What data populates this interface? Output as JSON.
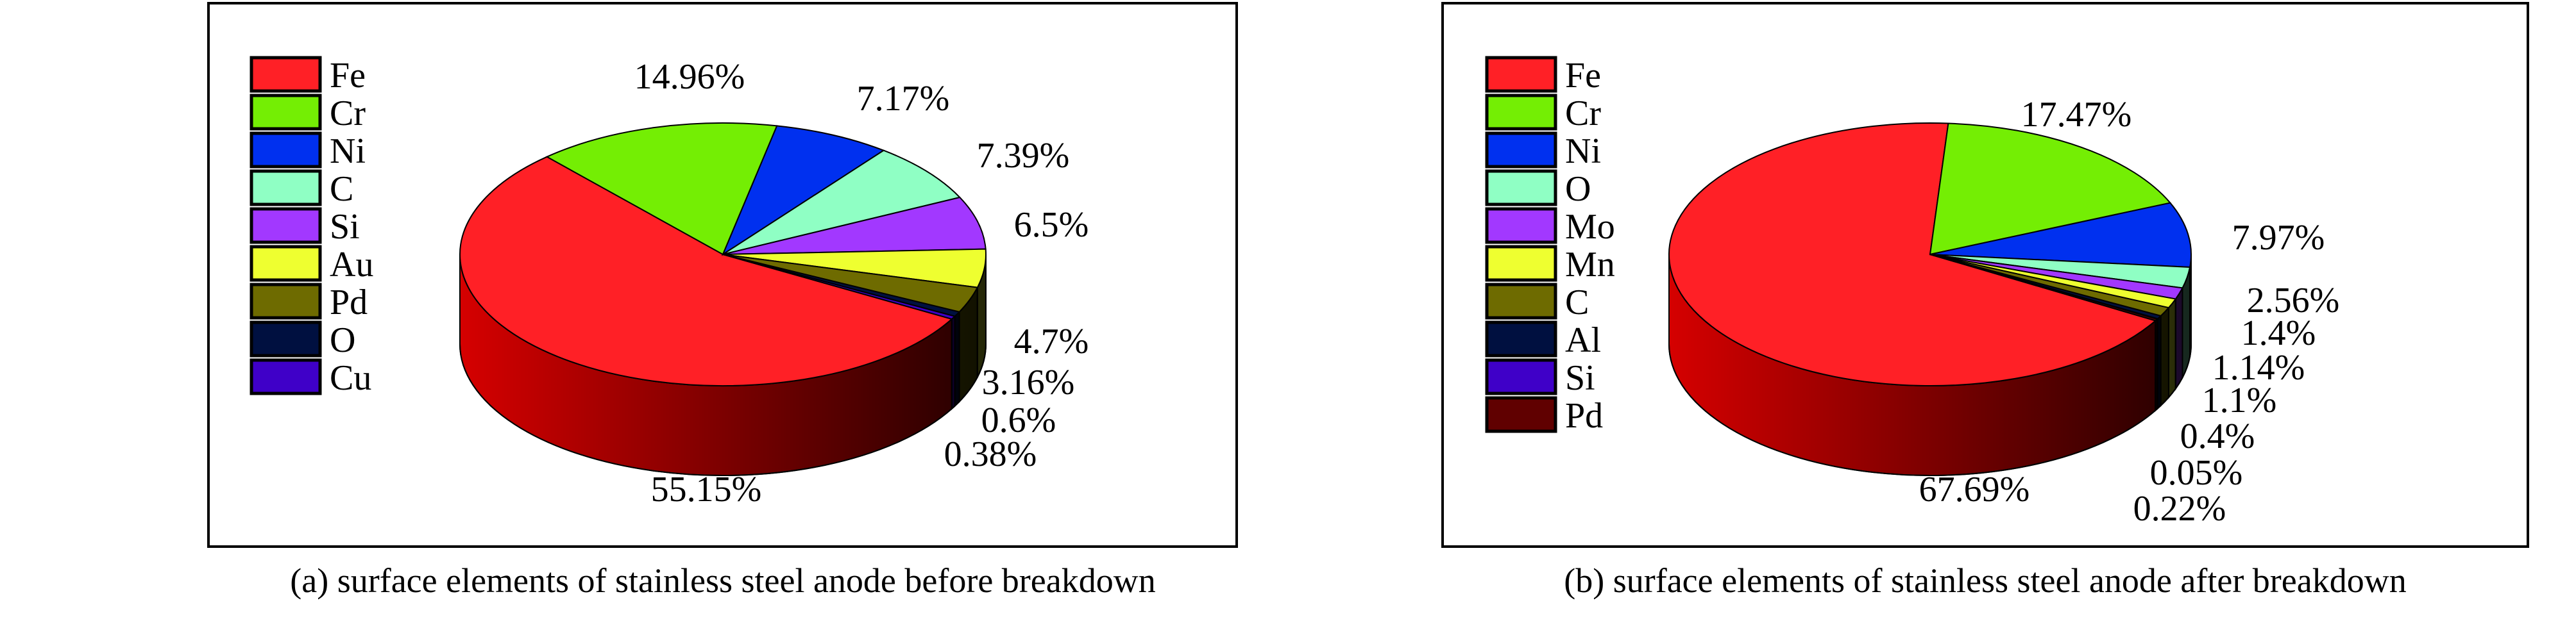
{
  "chart_data": [
    {
      "type": "pie",
      "variant": "3d",
      "caption": "(a) surface elements of stainless steel anode before breakdown",
      "legend_position": "left",
      "slices": [
        {
          "label": "Fe",
          "value": 55.15,
          "value_label": "55.15%",
          "color": "#ff2026"
        },
        {
          "label": "Cr",
          "value": 14.96,
          "value_label": "14.96%",
          "color": "#74ee04"
        },
        {
          "label": "Ni",
          "value": 7.17,
          "value_label": "7.17%",
          "color": "#0030ef"
        },
        {
          "label": "C",
          "value": 7.39,
          "value_label": "7.39%",
          "color": "#8fffc4"
        },
        {
          "label": "Si",
          "value": 6.5,
          "value_label": "6.5%",
          "color": "#a238ff"
        },
        {
          "label": "Au",
          "value": 4.7,
          "value_label": "4.7%",
          "color": "#eeff30"
        },
        {
          "label": "Pd",
          "value": 3.16,
          "value_label": "3.16%",
          "color": "#6e6b00"
        },
        {
          "label": "O",
          "value": 0.6,
          "value_label": "0.6%",
          "color": "#001040"
        },
        {
          "label": "Cu",
          "value": 0.38,
          "value_label": "0.38%",
          "color": "#3f00c8"
        }
      ]
    },
    {
      "type": "pie",
      "variant": "3d",
      "caption": "(b) surface elements of stainless steel anode after breakdown",
      "legend_position": "left",
      "slices": [
        {
          "label": "Fe",
          "value": 67.69,
          "value_label": "67.69%",
          "color": "#ff2026"
        },
        {
          "label": "Cr",
          "value": 17.47,
          "value_label": "17.47%",
          "color": "#74ee04"
        },
        {
          "label": "Ni",
          "value": 7.97,
          "value_label": "7.97%",
          "color": "#0030ef"
        },
        {
          "label": "O",
          "value": 2.56,
          "value_label": "2.56%",
          "color": "#8fffc4"
        },
        {
          "label": "Mo",
          "value": 1.4,
          "value_label": "1.4%",
          "color": "#a238ff"
        },
        {
          "label": "Mn",
          "value": 1.14,
          "value_label": "1.14%",
          "color": "#eeff30"
        },
        {
          "label": "C",
          "value": 1.1,
          "value_label": "1.1%",
          "color": "#6e6b00"
        },
        {
          "label": "Al",
          "value": 0.4,
          "value_label": "0.4%",
          "color": "#001040"
        },
        {
          "label": "Si",
          "value": 0.05,
          "value_label": "0.05%",
          "color": "#3f00c8"
        },
        {
          "label": "Pd",
          "value": 0.22,
          "value_label": "0.22%",
          "color": "#600000"
        }
      ]
    }
  ]
}
